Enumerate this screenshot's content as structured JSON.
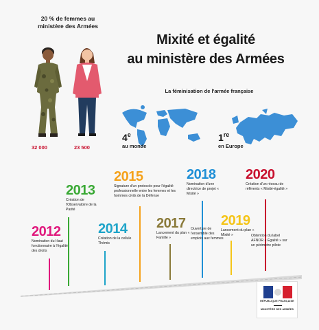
{
  "top_stat": "20 % de femmes au ministère des Armées",
  "title_line1": "Mixité et égalité",
  "title_line2": "au ministère des Armées",
  "feminisation_title": "La féminisation de l'armée française",
  "rank_world": {
    "num": "4",
    "sup": "e",
    "label": "au monde"
  },
  "rank_europe": {
    "num": "1",
    "sup": "re",
    "label": "en Europe"
  },
  "count_military": "32 000",
  "count_civil": "23 500",
  "timeline": [
    {
      "year": "2012",
      "color": "#e0197d",
      "desc": "Nomination du Haut fonctionnaire à l'égalité des droits"
    },
    {
      "year": "2013",
      "color": "#3aa935",
      "desc": "Création de l'Observatoire de la Parité"
    },
    {
      "year": "2014",
      "color": "#1ea4c9",
      "desc": "Création de la cellule Thémis"
    },
    {
      "year": "2015",
      "color": "#f5a21b",
      "desc": "Signature d'un protocole pour l'égalité professionnelle entre les femmes et les hommes civils de la Défense"
    },
    {
      "year": "2017",
      "color": "#8a7a3a",
      "desc": "Lancement du plan « Famille »"
    },
    {
      "year": "2018",
      "color": "#1f8fd6",
      "desc": "Nomination d'une directrice de projet « Mixité »"
    },
    {
      "year": "2018b",
      "color": "#1f8fd6",
      "desc": "Ouverture de l'ensemble des emplois aux femmes"
    },
    {
      "year": "2019",
      "color": "#f5c518",
      "desc": "Lancement du plan « Mixité »"
    },
    {
      "year": "2020",
      "color": "#c8102e",
      "desc": "Création d'un réseau de référents « Mixité-égalité »"
    },
    {
      "year": "2020b",
      "color": "#c8102e",
      "desc": "Obtention du label AFNOR « Égalité » sur un périmètre pilote"
    }
  ],
  "logo": {
    "line1": "RÉPUBLIQUE FRANÇAISE",
    "line2": "MINISTÈRE DES ARMÉES"
  }
}
